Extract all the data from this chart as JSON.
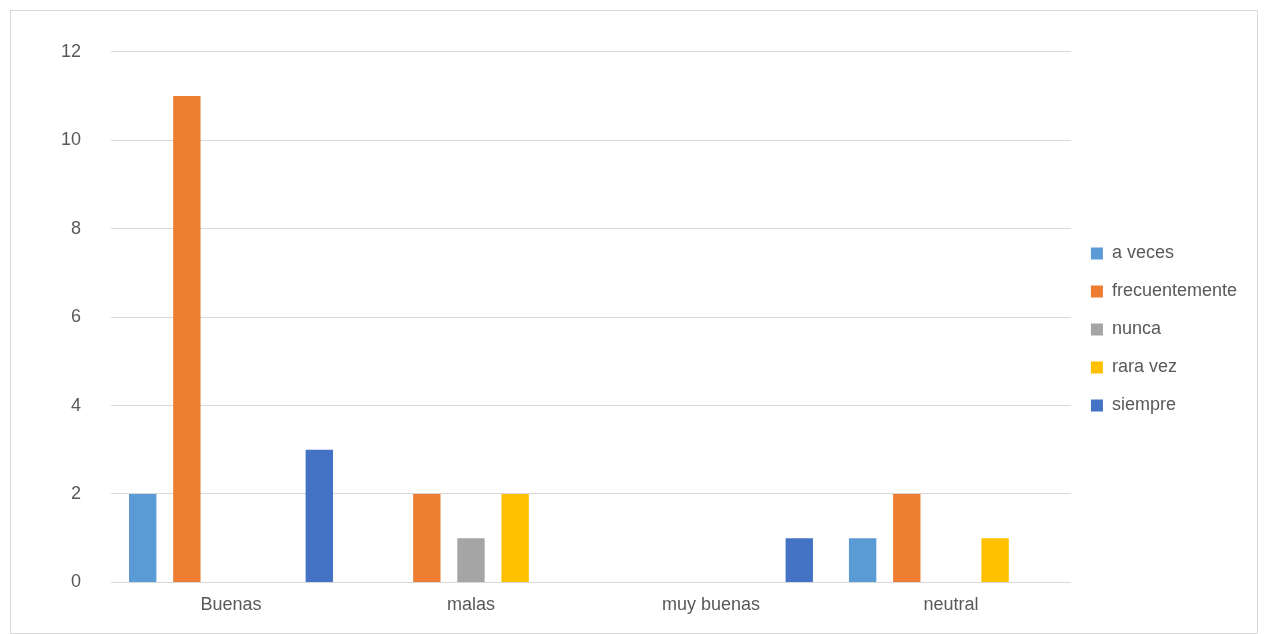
{
  "chart_data": {
    "type": "bar",
    "categories": [
      "Buenas",
      "malas",
      "muy buenas",
      "neutral"
    ],
    "series": [
      {
        "name": "a veces",
        "color": "#5b9bd5",
        "values": [
          2,
          null,
          null,
          1
        ]
      },
      {
        "name": "frecuentemente",
        "color": "#ed7d31",
        "values": [
          11,
          2,
          null,
          2
        ]
      },
      {
        "name": "nunca",
        "color": "#a5a5a5",
        "values": [
          null,
          1,
          null,
          null
        ]
      },
      {
        "name": "rara vez",
        "color": "#ffc000",
        "values": [
          null,
          2,
          null,
          1
        ]
      },
      {
        "name": "siempre",
        "color": "#4472c4",
        "values": [
          3,
          null,
          1,
          null
        ]
      }
    ],
    "ylim": [
      0,
      12
    ],
    "yticks": [
      0,
      2,
      4,
      6,
      8,
      10,
      12
    ],
    "grid": "y",
    "legend": "right"
  }
}
